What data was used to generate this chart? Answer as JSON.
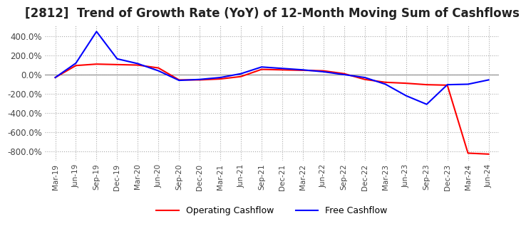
{
  "title": "[2812]  Trend of Growth Rate (YoY) of 12-Month Moving Sum of Cashflows",
  "title_fontsize": 12,
  "ylim": [
    -900,
    520
  ],
  "yticks": [
    400,
    200,
    0,
    -200,
    -400,
    -600,
    -800
  ],
  "ytick_labels": [
    "400.0%",
    "200.0%",
    "0.0%",
    "-200.0%",
    "-400.0%",
    "-600.0%",
    "-800.0%"
  ],
  "background_color": "#ffffff",
  "plot_background_color": "#ffffff",
  "grid_color": "#aaaaaa",
  "x_labels": [
    "Mar-19",
    "Jun-19",
    "Sep-19",
    "Dec-19",
    "Mar-20",
    "Jun-20",
    "Sep-20",
    "Dec-20",
    "Mar-21",
    "Jun-21",
    "Sep-21",
    "Dec-21",
    "Mar-22",
    "Jun-22",
    "Sep-22",
    "Dec-22",
    "Mar-23",
    "Jun-23",
    "Sep-23",
    "Dec-23",
    "Mar-24",
    "Jun-24"
  ],
  "operating_cashflow": [
    -30,
    95,
    110,
    105,
    100,
    70,
    -55,
    -55,
    -45,
    -20,
    55,
    50,
    45,
    40,
    10,
    -50,
    -80,
    -90,
    -105,
    -110,
    -820,
    -830
  ],
  "free_cashflow": [
    -30,
    120,
    450,
    165,
    115,
    40,
    -60,
    -50,
    -30,
    10,
    80,
    65,
    50,
    30,
    0,
    -30,
    -100,
    -220,
    -310,
    -105,
    -100,
    -55
  ],
  "op_color": "#ff0000",
  "free_color": "#0000ff",
  "legend_labels": [
    "Operating Cashflow",
    "Free Cashflow"
  ]
}
